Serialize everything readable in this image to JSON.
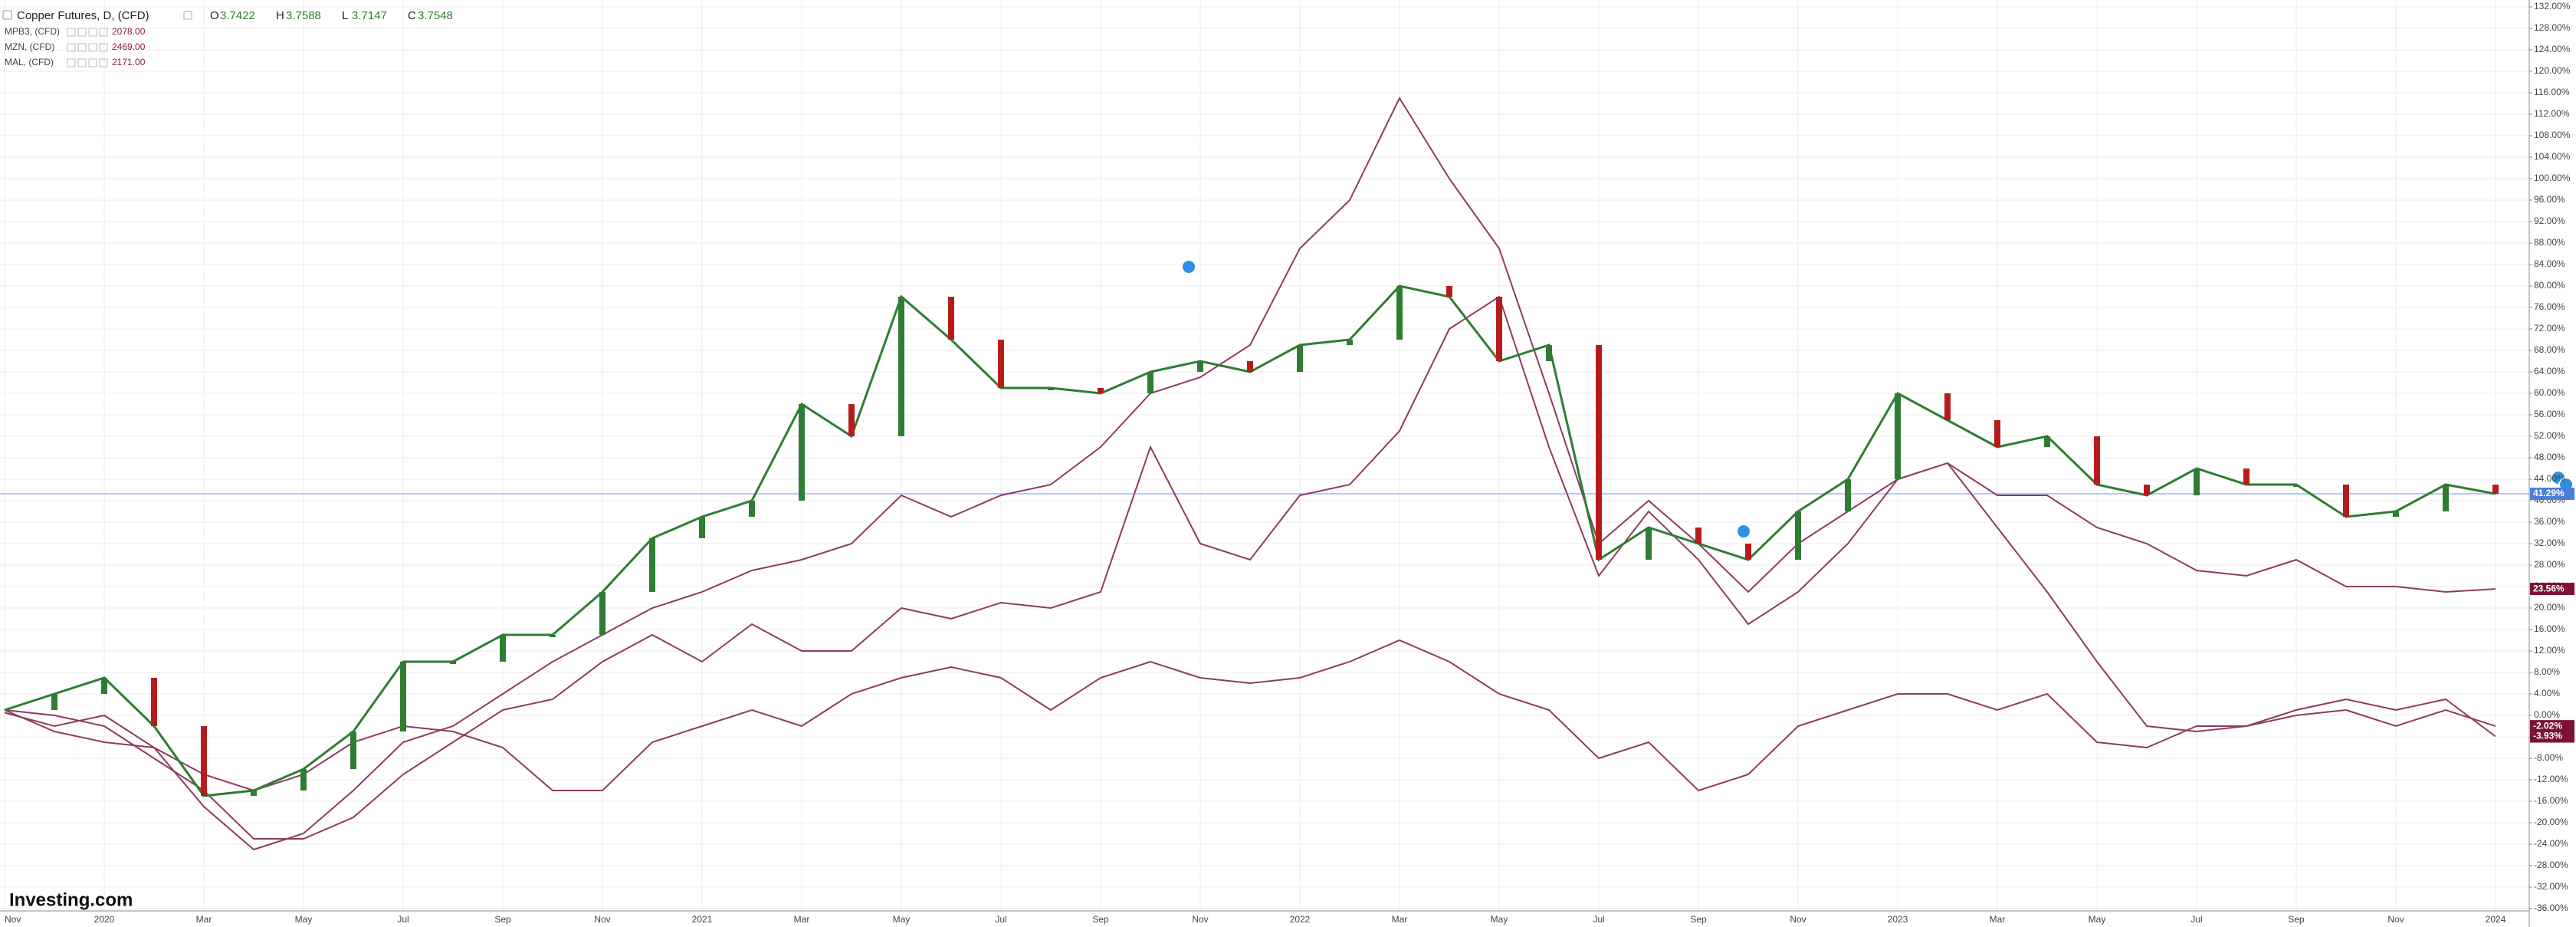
{
  "chart_data": {
    "type": "line",
    "header": {
      "title": "Copper Futures, D, (CFD)",
      "ohlc": [
        {
          "key": "O",
          "text": "3.7422"
        },
        {
          "key": "H",
          "text": "3.7588"
        },
        {
          "key": "L",
          "text": "3.7147"
        },
        {
          "key": "C",
          "text": "3.7548"
        }
      ]
    },
    "logo": "Investing.com",
    "categories": [
      "Nov",
      null,
      "2020",
      null,
      "Mar",
      null,
      "May",
      null,
      "Jul",
      null,
      "Sep",
      null,
      "Nov",
      null,
      "2021",
      null,
      "Mar",
      null,
      "May",
      null,
      "Jul",
      null,
      "Sep",
      null,
      "Nov",
      null,
      "2022",
      null,
      "Mar",
      null,
      "May",
      null,
      "Jul",
      null,
      "Sep",
      null,
      "Nov",
      null,
      "2023",
      null,
      "Mar",
      null,
      "May",
      null,
      "Jul",
      null,
      "Sep",
      null,
      "Nov",
      null,
      "2024"
    ],
    "series": [
      {
        "name": "Copper Futures",
        "color": "#2e7d32",
        "down_color": "#b71c1c",
        "badge_color": "#4a7fd8",
        "values": [
          1,
          4,
          7,
          -2,
          -15,
          -14,
          -10,
          -3,
          10,
          10,
          15,
          15,
          23,
          33,
          37,
          40,
          58,
          52,
          78,
          70,
          61,
          61,
          60,
          64,
          66,
          64,
          69,
          70,
          80,
          78,
          66,
          69,
          29,
          35,
          32,
          29,
          38,
          44,
          60,
          55,
          50,
          52,
          43,
          41,
          46,
          43,
          43,
          37,
          38,
          43,
          41.29
        ],
        "value_labels": [
          null,
          null,
          null,
          null,
          null,
          null,
          null,
          null,
          null,
          null,
          null,
          null,
          null,
          null,
          null,
          null,
          null,
          null,
          null,
          null,
          null,
          null,
          null,
          null,
          null,
          null,
          null,
          null,
          null,
          null,
          null,
          null,
          null,
          null,
          null,
          null,
          null,
          null,
          null,
          null,
          null,
          null,
          null,
          null,
          null,
          null,
          null,
          null,
          null,
          null,
          "41.29%"
        ]
      },
      {
        "name": "MAL, (CFD)",
        "price": "2171.00",
        "color": "#8e3b63",
        "badge_color": "#7a1238",
        "values": [
          0.5,
          -2,
          0,
          -6,
          -17,
          -25,
          -22,
          -14,
          -5,
          -2,
          4,
          10,
          15,
          20,
          23,
          27,
          29,
          32,
          41,
          37,
          41,
          43,
          50,
          60,
          63,
          69,
          87,
          96,
          115,
          100,
          87,
          60,
          32,
          40,
          32,
          23,
          32,
          38,
          44,
          47,
          41,
          41,
          35,
          32,
          27,
          26,
          29,
          24,
          24,
          23,
          23.56
        ],
        "value_labels": [
          null,
          null,
          null,
          null,
          null,
          null,
          null,
          null,
          null,
          null,
          null,
          null,
          null,
          null,
          null,
          null,
          null,
          null,
          null,
          null,
          null,
          null,
          null,
          null,
          null,
          null,
          null,
          null,
          null,
          null,
          null,
          null,
          null,
          null,
          null,
          null,
          null,
          null,
          null,
          null,
          null,
          null,
          null,
          null,
          null,
          null,
          null,
          null,
          null,
          null,
          "23.56%"
        ]
      },
      {
        "name": "MZN, (CFD)",
        "price": "2469.00",
        "color": "#8e3b63",
        "badge_color": "#7a1238",
        "values": [
          1,
          0,
          -2,
          -8,
          -14,
          -23,
          -23,
          -19,
          -11,
          -5,
          1,
          3,
          10,
          15,
          10,
          17,
          12,
          12,
          20,
          18,
          21,
          20,
          23,
          50,
          32,
          29,
          41,
          43,
          53,
          72,
          78,
          50,
          26,
          38,
          29,
          17,
          23,
          32,
          44,
          47,
          35,
          23,
          10,
          -2,
          -3,
          -2,
          0,
          1,
          -2,
          1,
          -2.02
        ],
        "value_labels": [
          null,
          null,
          null,
          null,
          null,
          null,
          null,
          null,
          null,
          null,
          null,
          null,
          null,
          null,
          null,
          null,
          null,
          null,
          null,
          null,
          null,
          null,
          null,
          null,
          null,
          null,
          null,
          null,
          null,
          null,
          null,
          null,
          null,
          null,
          null,
          null,
          null,
          null,
          null,
          null,
          null,
          null,
          null,
          null,
          null,
          null,
          null,
          null,
          null,
          null,
          "-2.02%"
        ]
      },
      {
        "name": "MPB3, (CFD)",
        "price": "2078.00",
        "color": "#8e3b63",
        "badge_color": "#7a1238",
        "values": [
          1,
          -3,
          -5,
          -6,
          -11,
          -14,
          -11,
          -5,
          -2,
          -3,
          -6,
          -14,
          -14,
          -5,
          -2,
          1,
          -2,
          4,
          7,
          9,
          7,
          1,
          7,
          10,
          7,
          6,
          7,
          10,
          14,
          10,
          4,
          1,
          -8,
          -5,
          -14,
          -11,
          -2,
          1,
          4,
          4,
          1,
          4,
          -5,
          -6,
          -2,
          -2,
          1,
          3,
          1,
          3,
          -3.93
        ],
        "value_labels": [
          null,
          null,
          null,
          null,
          null,
          null,
          null,
          null,
          null,
          null,
          null,
          null,
          null,
          null,
          null,
          null,
          null,
          null,
          null,
          null,
          null,
          null,
          null,
          null,
          null,
          null,
          null,
          null,
          null,
          null,
          null,
          null,
          null,
          null,
          null,
          null,
          null,
          null,
          null,
          null,
          null,
          null,
          null,
          null,
          null,
          null,
          null,
          null,
          null,
          null,
          "-3.93%"
        ]
      }
    ],
    "ylim": [
      -36,
      132
    ],
    "yticks": [
      {
        "value": 132,
        "label": "132.00%"
      },
      {
        "value": 128,
        "label": "128.00%"
      },
      {
        "value": 124,
        "label": "124.00%"
      },
      {
        "value": 120,
        "label": "120.00%"
      },
      {
        "value": 116,
        "label": "116.00%"
      },
      {
        "value": 112,
        "label": "112.00%"
      },
      {
        "value": 108,
        "label": "108.00%"
      },
      {
        "value": 104,
        "label": "104.00%"
      },
      {
        "value": 100,
        "label": "100.00%"
      },
      {
        "value": 96,
        "label": "96.00%"
      },
      {
        "value": 92,
        "label": "92.00%"
      },
      {
        "value": 88,
        "label": "88.00%"
      },
      {
        "value": 84,
        "label": "84.00%"
      },
      {
        "value": 80,
        "label": "80.00%"
      },
      {
        "value": 76,
        "label": "76.00%"
      },
      {
        "value": 72,
        "label": "72.00%"
      },
      {
        "value": 68,
        "label": "68.00%"
      },
      {
        "value": 64,
        "label": "64.00%"
      },
      {
        "value": 60,
        "label": "60.00%"
      },
      {
        "value": 56,
        "label": "56.00%"
      },
      {
        "value": 52,
        "label": "52.00%"
      },
      {
        "value": 48,
        "label": "48.00%"
      },
      {
        "value": 44,
        "label": "44.00%"
      },
      {
        "value": 40,
        "label": "40.00%"
      },
      {
        "value": 36,
        "label": "36.00%"
      },
      {
        "value": 32,
        "label": "32.00%"
      },
      {
        "value": 28,
        "label": "28.00%"
      },
      {
        "value": 24,
        "label": "24.00%"
      },
      {
        "value": 20,
        "label": "20.00%"
      },
      {
        "value": 16,
        "label": "16.00%"
      },
      {
        "value": 12,
        "label": "12.00%"
      },
      {
        "value": 8,
        "label": "8.00%"
      },
      {
        "value": 4,
        "label": "4.00%"
      },
      {
        "value": 0,
        "label": "0.00%"
      },
      {
        "value": -4,
        "label": "-4.00%"
      },
      {
        "value": -8,
        "label": "-8.00%"
      },
      {
        "value": -12,
        "label": "-12.00%"
      },
      {
        "value": -16,
        "label": "-16.00%"
      },
      {
        "value": -20,
        "label": "-20.00%"
      },
      {
        "value": -24,
        "label": "-24.00%"
      },
      {
        "value": -28,
        "label": "-28.00%"
      },
      {
        "value": -32,
        "label": "-32.00%"
      },
      {
        "value": -36,
        "label": "-36.00%"
      }
    ],
    "grid": true
  }
}
